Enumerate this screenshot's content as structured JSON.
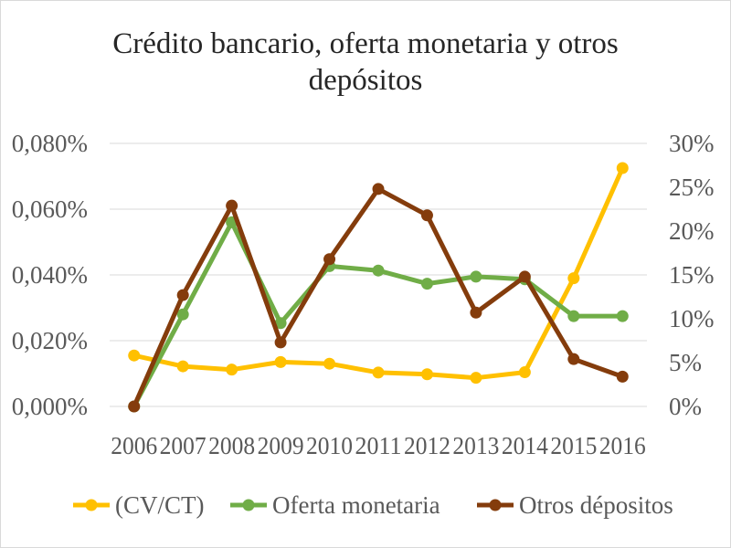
{
  "chart_data": {
    "type": "line",
    "title_lines": [
      "Crédito bancario, oferta monetaria  y otros",
      "depósitos"
    ],
    "categories": [
      "2006",
      "2007",
      "2008",
      "2009",
      "2010",
      "2011",
      "2012",
      "2013",
      "2014",
      "2015",
      "2016"
    ],
    "y_left": {
      "ylim": [
        0,
        0.08
      ],
      "ticks": [
        "0,000%",
        "0,020%",
        "0,040%",
        "0,060%",
        "0,080%"
      ]
    },
    "y_right": {
      "ylim": [
        0,
        30
      ],
      "ticks": [
        "0%",
        "5%",
        "10%",
        "15%",
        "20%",
        "25%",
        "30%"
      ]
    },
    "grid": true,
    "legend_position": "bottom",
    "series": [
      {
        "name": "(CV/CT)",
        "axis": "left",
        "color": "#FFC000",
        "values": [
          0.0155,
          0.0122,
          0.0112,
          0.0135,
          0.013,
          0.0103,
          0.0098,
          0.0087,
          0.0104,
          0.039,
          0.0725
        ]
      },
      {
        "name": "Oferta monetaria",
        "axis": "right",
        "color": "#70AD47",
        "values": [
          0.0,
          10.5,
          21.0,
          9.5,
          16.0,
          15.5,
          14.0,
          14.8,
          14.5,
          10.3,
          10.3
        ]
      },
      {
        "name": "Otros dépositos",
        "axis": "right",
        "color": "#843C0C",
        "values": [
          0.0,
          12.7,
          22.9,
          7.3,
          16.8,
          24.8,
          21.8,
          10.7,
          14.8,
          5.4,
          3.4
        ]
      }
    ]
  }
}
